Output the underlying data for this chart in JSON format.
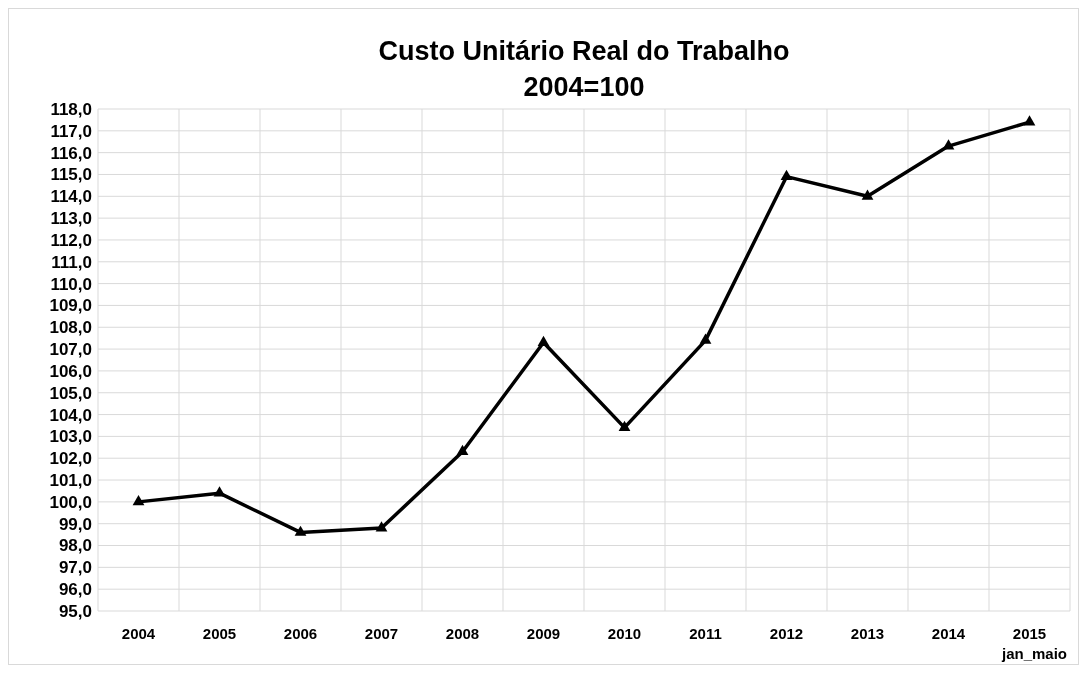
{
  "chart_data": {
    "type": "line",
    "title": "Custo Unitário Real do Trabalho",
    "subtitle": "2004=100",
    "categories": [
      "2004",
      "2005",
      "2006",
      "2007",
      "2008",
      "2009",
      "2010",
      "2011",
      "2012",
      "2013",
      "2014",
      "2015"
    ],
    "series": [
      {
        "color": "#000000",
        "values": [
          100.0,
          100.4,
          98.6,
          98.8,
          102.3,
          107.3,
          103.4,
          107.4,
          114.9,
          114.0,
          116.3,
          117.4
        ]
      }
    ],
    "ylim": [
      95,
      118
    ],
    "yticks": [
      {
        "value": 95,
        "label": "95,0"
      },
      {
        "value": 96,
        "label": "96,0"
      },
      {
        "value": 97,
        "label": "97,0"
      },
      {
        "value": 98,
        "label": "98,0"
      },
      {
        "value": 99,
        "label": "99,0"
      },
      {
        "value": 100,
        "label": "100,0"
      },
      {
        "value": 101,
        "label": "101,0"
      },
      {
        "value": 102,
        "label": "102,0"
      },
      {
        "value": 103,
        "label": "103,0"
      },
      {
        "value": 104,
        "label": "104,0"
      },
      {
        "value": 105,
        "label": "105,0"
      },
      {
        "value": 106,
        "label": "106,0"
      },
      {
        "value": 107,
        "label": "107,0"
      },
      {
        "value": 108,
        "label": "108,0"
      },
      {
        "value": 109,
        "label": "109,0"
      },
      {
        "value": 110,
        "label": "110,0"
      },
      {
        "value": 111,
        "label": "111,0"
      },
      {
        "value": 112,
        "label": "112,0"
      },
      {
        "value": 113,
        "label": "113,0"
      },
      {
        "value": 114,
        "label": "114,0"
      },
      {
        "value": 115,
        "label": "115,0"
      },
      {
        "value": 116,
        "label": "116,0"
      },
      {
        "value": 117,
        "label": "117,0"
      },
      {
        "value": 118,
        "label": "118,0"
      }
    ],
    "annotations": [
      "jan_maio"
    ],
    "grid": true,
    "marker": "triangle",
    "line_style": "solid"
  }
}
